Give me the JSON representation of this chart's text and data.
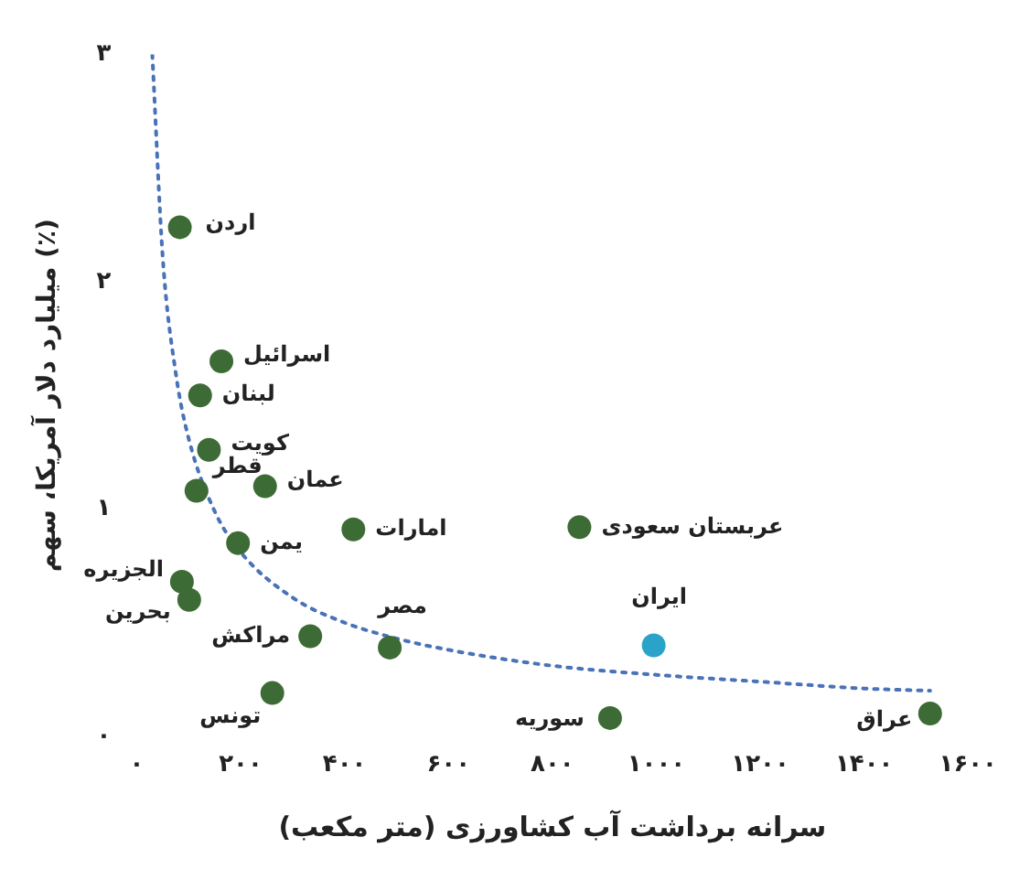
{
  "chart_data": {
    "type": "scatter",
    "xlabel": "سرانه برداشت آب کشاورزی (متر مکعب)",
    "ylabel": "میلیارد دلار آمریکا، سهم (٪)",
    "xlim": [
      0,
      1600
    ],
    "ylim": [
      0,
      3
    ],
    "xticks": [
      {
        "value": 0,
        "label": "۰"
      },
      {
        "value": 200,
        "label": "۲۰۰"
      },
      {
        "value": 400,
        "label": "۴۰۰"
      },
      {
        "value": 600,
        "label": "۶۰۰"
      },
      {
        "value": 800,
        "label": "۸۰۰"
      },
      {
        "value": 1000,
        "label": "۱۰۰۰"
      },
      {
        "value": 1200,
        "label": "۱۲۰۰"
      },
      {
        "value": 1400,
        "label": "۱۴۰۰"
      },
      {
        "value": 1600,
        "label": "۱۶۰۰"
      }
    ],
    "yticks": [
      {
        "value": 0,
        "label": "۰"
      },
      {
        "value": 1,
        "label": "۱"
      },
      {
        "value": 2,
        "label": "۲"
      },
      {
        "value": 3,
        "label": "۳"
      }
    ],
    "grid": false,
    "legend": false,
    "marker": "circle",
    "series": [
      {
        "name": "اردن",
        "color": "#3d6b35",
        "x": [
          83
        ],
        "values": [
          2.24
        ]
      },
      {
        "name": "اسرائیل",
        "color": "#3d6b35",
        "x": [
          163
        ],
        "values": [
          1.65
        ]
      },
      {
        "name": "لبنان",
        "color": "#3d6b35",
        "x": [
          122
        ],
        "values": [
          1.5
        ]
      },
      {
        "name": "کویت",
        "color": "#3d6b35",
        "x": [
          139
        ],
        "values": [
          1.26
        ]
      },
      {
        "name": "قطر",
        "color": "#3d6b35",
        "x": [
          115
        ],
        "values": [
          1.08
        ]
      },
      {
        "name": "عمان",
        "color": "#3d6b35",
        "x": [
          247
        ],
        "values": [
          1.1
        ]
      },
      {
        "name": "یمن",
        "color": "#3d6b35",
        "x": [
          195
        ],
        "values": [
          0.85
        ]
      },
      {
        "name": "امارات",
        "color": "#3d6b35",
        "x": [
          417
        ],
        "values": [
          0.91
        ]
      },
      {
        "name": "عربستان سعودی",
        "color": "#3d6b35",
        "x": [
          852
        ],
        "values": [
          0.92
        ]
      },
      {
        "name": "الجزیره",
        "color": "#3d6b35",
        "x": [
          87
        ],
        "values": [
          0.68
        ]
      },
      {
        "name": "بحرین",
        "color": "#3d6b35",
        "x": [
          101
        ],
        "values": [
          0.6
        ]
      },
      {
        "name": "مصر",
        "color": "#3d6b35",
        "x": [
          487
        ],
        "values": [
          0.39
        ]
      },
      {
        "name": "مراکش",
        "color": "#3d6b35",
        "x": [
          334
        ],
        "values": [
          0.44
        ]
      },
      {
        "name": "تونس",
        "color": "#3d6b35",
        "x": [
          261
        ],
        "values": [
          0.19
        ]
      },
      {
        "name": "ایران",
        "color": "#2aa3c9",
        "x": [
          995
        ],
        "values": [
          0.4
        ]
      },
      {
        "name": "سوریه",
        "color": "#3d6b35",
        "x": [
          911
        ],
        "values": [
          0.08
        ]
      },
      {
        "name": "عراق",
        "color": "#3d6b35",
        "x": [
          1527
        ],
        "values": [
          0.1
        ]
      },
      {
        "type": "line",
        "color": "#4a72b8",
        "line_style": "dotted",
        "marker": "none",
        "x": [
          30,
          50,
          75,
          100,
          150,
          200,
          300,
          400,
          500,
          600,
          800,
          1000,
          1200,
          1400,
          1527
        ],
        "values": [
          3.0,
          2.11,
          1.6,
          1.31,
          0.99,
          0.81,
          0.61,
          0.5,
          0.43,
          0.38,
          0.31,
          0.27,
          0.24,
          0.21,
          0.2
        ]
      }
    ]
  }
}
